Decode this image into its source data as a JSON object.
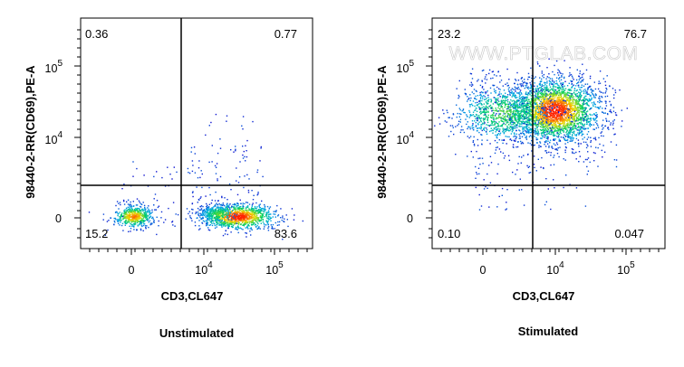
{
  "chart_data": [
    {
      "type": "scatter",
      "title": "",
      "caption": "Unstimulated",
      "xlabel": "CD3,CL647",
      "ylabel": "98440-2-RR(CD69),PE-A",
      "x_scale": "biexponential",
      "y_scale": "biexponential",
      "x_ticks": [
        {
          "value": "0",
          "label": "0",
          "sup": ""
        },
        {
          "value": "10^4",
          "label": "10",
          "sup": "4"
        },
        {
          "value": "10^5",
          "label": "10",
          "sup": "5"
        }
      ],
      "y_ticks": [
        {
          "value": "0",
          "label": "0",
          "sup": ""
        },
        {
          "value": "10^4",
          "label": "10",
          "sup": "4"
        },
        {
          "value": "10^5",
          "label": "10",
          "sup": "5"
        }
      ],
      "quadrants": {
        "top_left": "0.36",
        "top_right": "0.77",
        "bottom_left": "15.2",
        "bottom_right": "83.6"
      },
      "populations": [
        {
          "name": "",
          "x_center": "~-300",
          "y_center": "~0",
          "description": "CD3- CD69- cluster"
        },
        {
          "name": "",
          "x_center": "~3.5x10^4",
          "y_center": "~0",
          "description": "CD3+ CD69- cluster"
        }
      ],
      "watermark": "",
      "colors": {
        "low": "#1010d0",
        "mid": "#00d060",
        "high": "#ff2000"
      }
    },
    {
      "type": "scatter",
      "title": "",
      "caption": "Stimulated",
      "xlabel": "CD3,CL647",
      "ylabel": "98440-2-RR(CD69),PE-A",
      "x_scale": "biexponential",
      "y_scale": "biexponential",
      "x_ticks": [
        {
          "value": "0",
          "label": "0",
          "sup": ""
        },
        {
          "value": "10^4",
          "label": "10",
          "sup": "4"
        },
        {
          "value": "10^5",
          "label": "10",
          "sup": "5"
        }
      ],
      "y_ticks": [
        {
          "value": "0",
          "label": "0",
          "sup": ""
        },
        {
          "value": "10^4",
          "label": "10",
          "sup": "4"
        },
        {
          "value": "10^5",
          "label": "10",
          "sup": "5"
        }
      ],
      "quadrants": {
        "top_left": "23.2",
        "top_right": "76.7",
        "bottom_left": "0.10",
        "bottom_right": "0.047"
      },
      "populations": [
        {
          "name": "",
          "x_center": "~1.5x10^4",
          "y_center": "~3x10^4",
          "description": "CD3+ CD69+ cluster"
        }
      ],
      "watermark": "WWW.PTGLAB.COM",
      "colors": {
        "low": "#1010d0",
        "mid": "#00d060",
        "high": "#ff2000"
      }
    }
  ]
}
